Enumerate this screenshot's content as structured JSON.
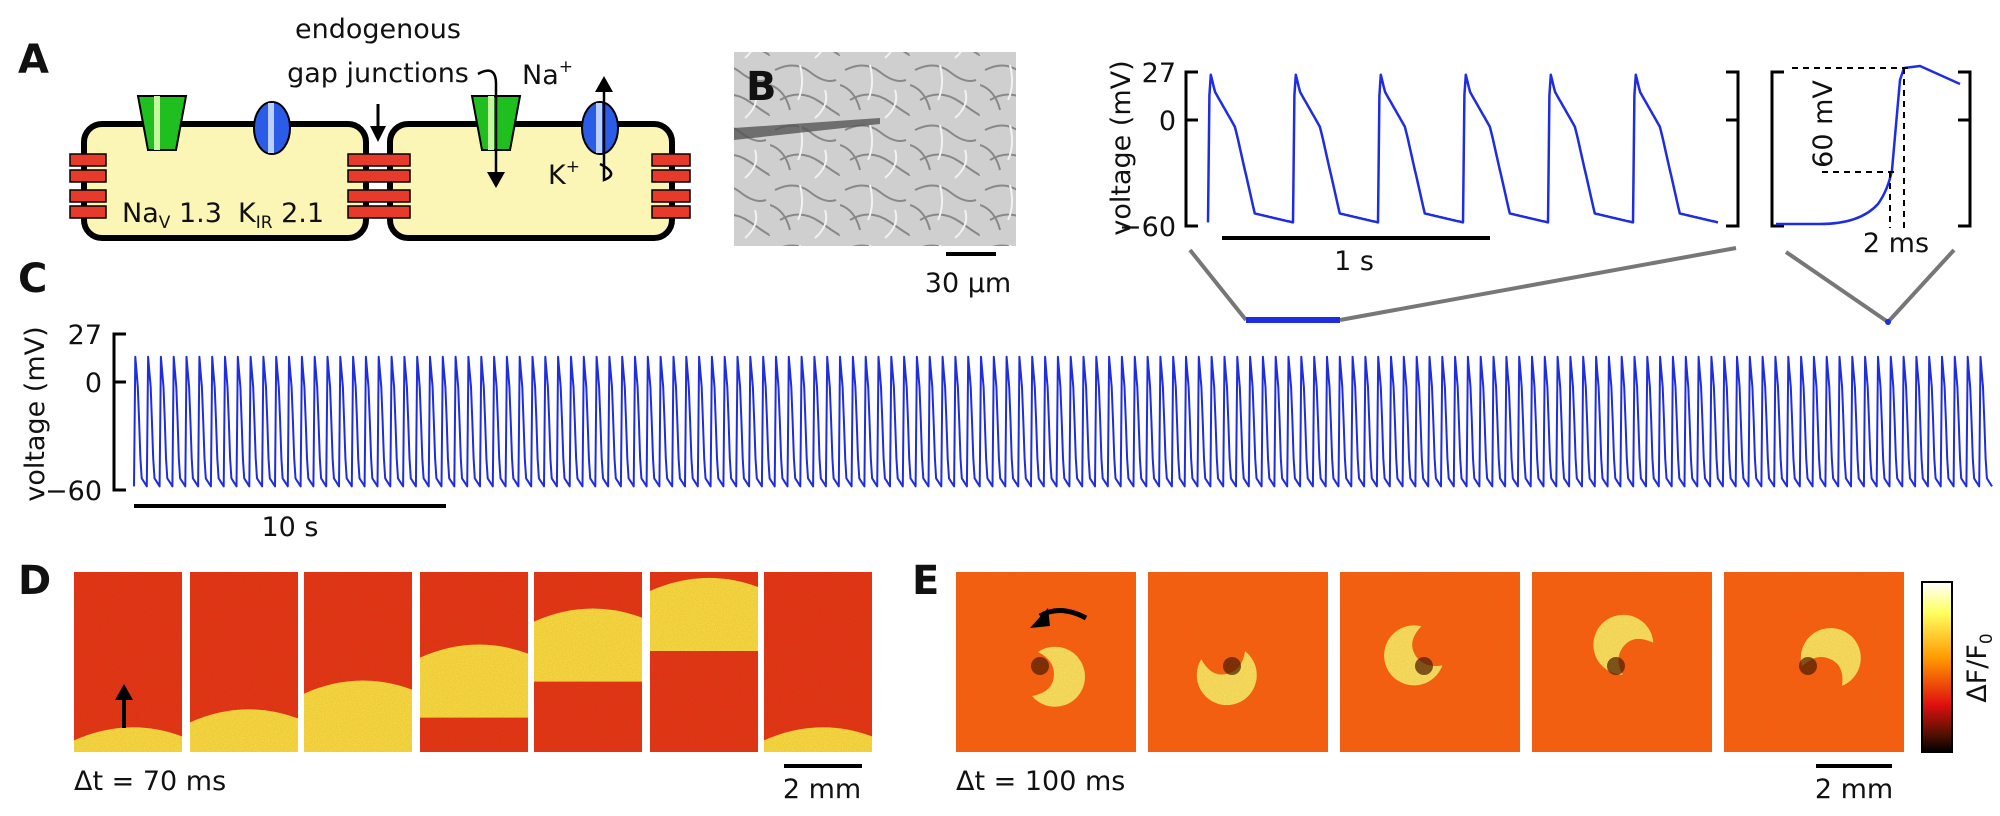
{
  "panels": {
    "A": {
      "label": "A",
      "annotation_line1": "endogenous",
      "annotation_line2": "gap junctions",
      "nav_label": "Na",
      "nav_sub": "V",
      "nav_num": " 1.3",
      "kir_label": "K",
      "kir_sub": "IR",
      "kir_num": " 2.1",
      "na_ion": "Na",
      "na_sup": "+",
      "k_ion": "K",
      "k_sup": "+",
      "colors": {
        "cell_fill": "#fbf6b5",
        "nav": "#1fbf1f",
        "kir": "#2b5ce8",
        "gap": "#e63a2a"
      }
    },
    "B": {
      "label": "B",
      "scalebar": "30 µm"
    },
    "top_traces": {
      "ylabel": "voltage (mV)",
      "yticks": [
        "27",
        "0",
        "−60"
      ],
      "scalebar": "1 s",
      "inset_voltage_label": "60 mV",
      "inset_time_label": "2 ms"
    },
    "C": {
      "label": "C",
      "ylabel": "voltage (mV)",
      "yticks": [
        "27",
        "0",
        "−60"
      ],
      "scalebar": "10 s"
    },
    "D": {
      "label": "D",
      "dt_label": "Δt = 70 ms",
      "scalebar": "2 mm"
    },
    "E": {
      "label": "E",
      "dt_label": "Δt = 100 ms",
      "scalebar": "2 mm",
      "colorbar_label": "ΔF/F",
      "colorbar_sub": "0"
    }
  },
  "chart_data": [
    {
      "type": "line",
      "panel": "C",
      "ylabel": "voltage (mV)",
      "ylim": [
        -60,
        27
      ],
      "yticks": [
        27,
        0,
        -60
      ],
      "time_span_s": 60,
      "beats": 145,
      "peak_mv": 27,
      "trough_mv": -58,
      "scalebar_s": 10,
      "color": "#1f2de0"
    },
    {
      "type": "line",
      "panel": "B-right",
      "ylabel": "voltage (mV)",
      "ylim": [
        -60,
        27
      ],
      "yticks": [
        27,
        0,
        -60
      ],
      "time_span_s": 2.4,
      "beats": 6,
      "peak_mv": 27,
      "trough_mv": -58,
      "scalebar_s": 1
    },
    {
      "type": "line",
      "panel": "B-inset",
      "ylim": [
        -60,
        27
      ],
      "upstroke_amplitude_mv": 60,
      "rise_time_ms": 2
    }
  ]
}
